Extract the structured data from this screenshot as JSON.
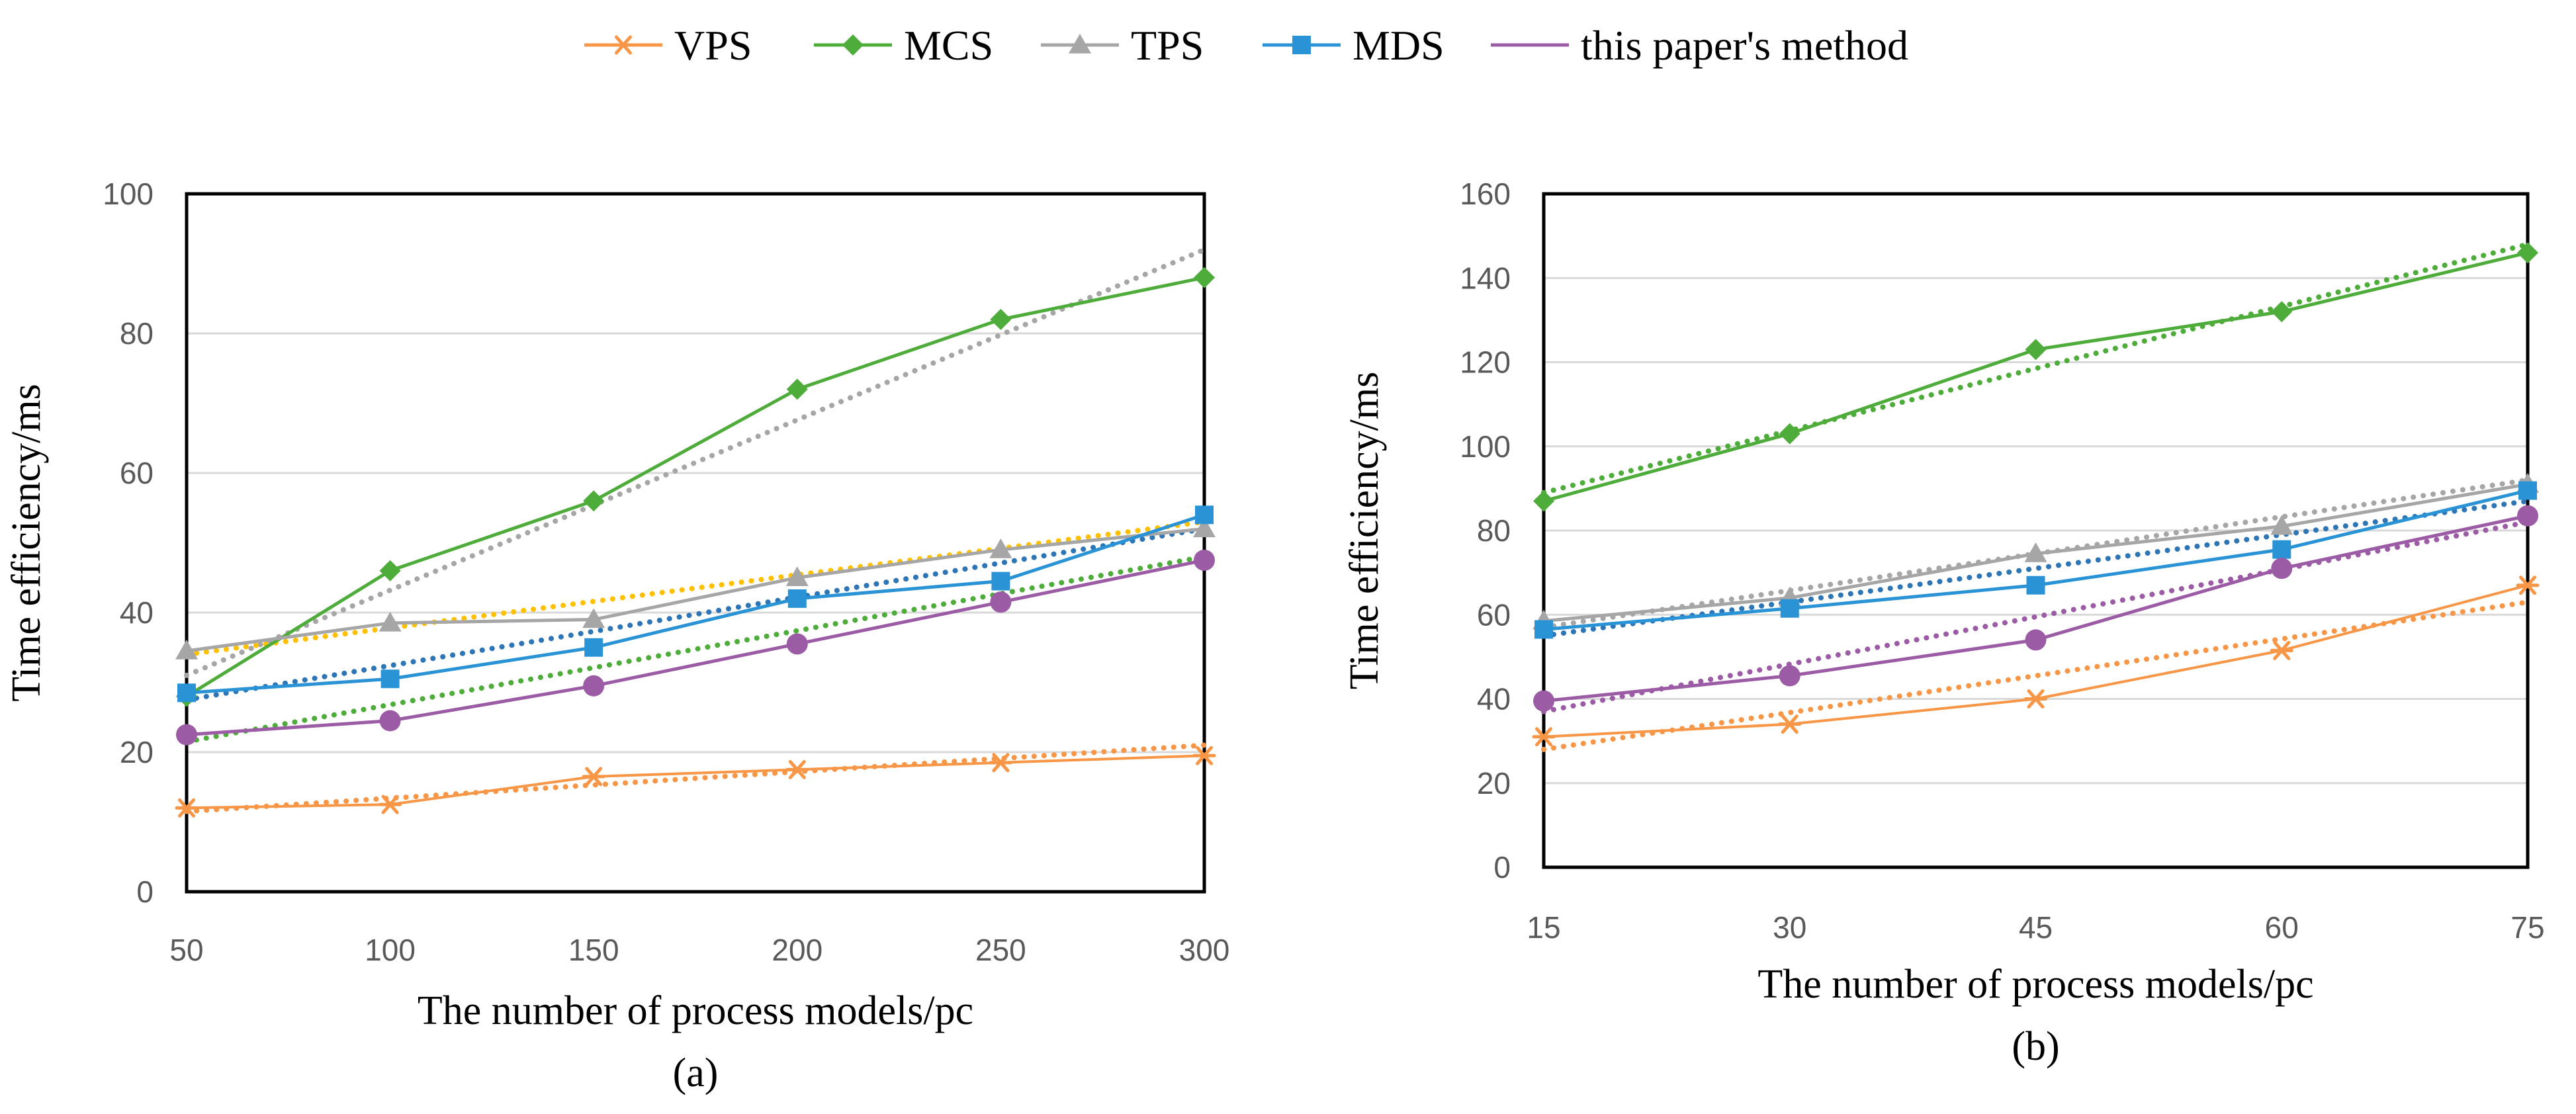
{
  "legend": {
    "entries": [
      {
        "name": "VPS",
        "color": "#F79646",
        "marker": "asterisk"
      },
      {
        "name": "MCS",
        "color": "#4EAC3A",
        "marker": "diamond"
      },
      {
        "name": "TPS",
        "color": "#A6A6A6",
        "marker": "triangle"
      },
      {
        "name": "MDS",
        "color": "#2A93D5",
        "marker": "square"
      },
      {
        "name": "this paper's method",
        "color": "#9B5BA5",
        "marker": "circle"
      }
    ]
  },
  "chart_data": [
    {
      "type": "line",
      "caption": "(a)",
      "xlabel": "The number of process models/pc",
      "ylabel": "Time efficiency/ms",
      "categories": [
        "50",
        "100",
        "150",
        "200",
        "250",
        "300"
      ],
      "ylim": [
        0,
        100
      ],
      "yticks": [
        0,
        20,
        40,
        60,
        80,
        100
      ],
      "grid": true,
      "series": [
        {
          "name": "VPS",
          "values": [
            12,
            12.5,
            16.5,
            17.5,
            18.5,
            19.5
          ]
        },
        {
          "name": "MCS",
          "values": [
            28,
            46,
            56,
            72,
            82,
            88
          ]
        },
        {
          "name": "TPS",
          "values": [
            34.5,
            38.5,
            39,
            45,
            49,
            52
          ]
        },
        {
          "name": "MDS",
          "values": [
            28.5,
            30.5,
            35,
            42,
            44.5,
            54
          ]
        },
        {
          "name": "this paper's method",
          "values": [
            22.5,
            24.5,
            29.5,
            35.5,
            41.5,
            47.5
          ]
        }
      ],
      "trendlines": [
        {
          "series": "VPS",
          "color": "#F79646",
          "from": 11.5,
          "to": 21
        },
        {
          "series": "MCS",
          "color": "#A6A6A6",
          "from": 31,
          "to": 92
        },
        {
          "series": "TPS",
          "color": "#FFC000",
          "from": 34,
          "to": 53
        },
        {
          "series": "MDS",
          "color": "#2E75B6",
          "from": 27.5,
          "to": 52
        },
        {
          "series": "this paper's method",
          "color": "#4EAC3A",
          "from": 21.5,
          "to": 48
        }
      ]
    },
    {
      "type": "line",
      "caption": "(b)",
      "xlabel": "The number of process models/pc",
      "ylabel": "Time efficiency/ms",
      "categories": [
        "15",
        "30",
        "45",
        "60",
        "75"
      ],
      "ylim": [
        0,
        160
      ],
      "yticks": [
        0,
        20,
        40,
        60,
        80,
        100,
        120,
        140,
        160
      ],
      "grid": true,
      "series": [
        {
          "name": "VPS",
          "values": [
            31,
            34,
            40,
            51.5,
            67
          ]
        },
        {
          "name": "MCS",
          "values": [
            87,
            103,
            123,
            132,
            146
          ]
        },
        {
          "name": "TPS",
          "values": [
            58.5,
            64,
            74.5,
            81,
            91
          ]
        },
        {
          "name": "MDS",
          "values": [
            56.5,
            61.5,
            67,
            75.5,
            89.5
          ]
        },
        {
          "name": "this paper's method",
          "values": [
            39.5,
            45.5,
            54,
            71,
            83.5
          ]
        }
      ],
      "trendlines": [
        {
          "series": "VPS",
          "color": "#F79646",
          "from": 28,
          "to": 63
        },
        {
          "series": "MCS",
          "color": "#4EAC3A",
          "from": 89,
          "to": 148
        },
        {
          "series": "TPS",
          "color": "#A6A6A6",
          "from": 57,
          "to": 92
        },
        {
          "series": "MDS",
          "color": "#2E75B6",
          "from": 55,
          "to": 87
        },
        {
          "series": "this paper's method",
          "color": "#9B5BA5",
          "from": 37,
          "to": 82
        }
      ]
    }
  ]
}
